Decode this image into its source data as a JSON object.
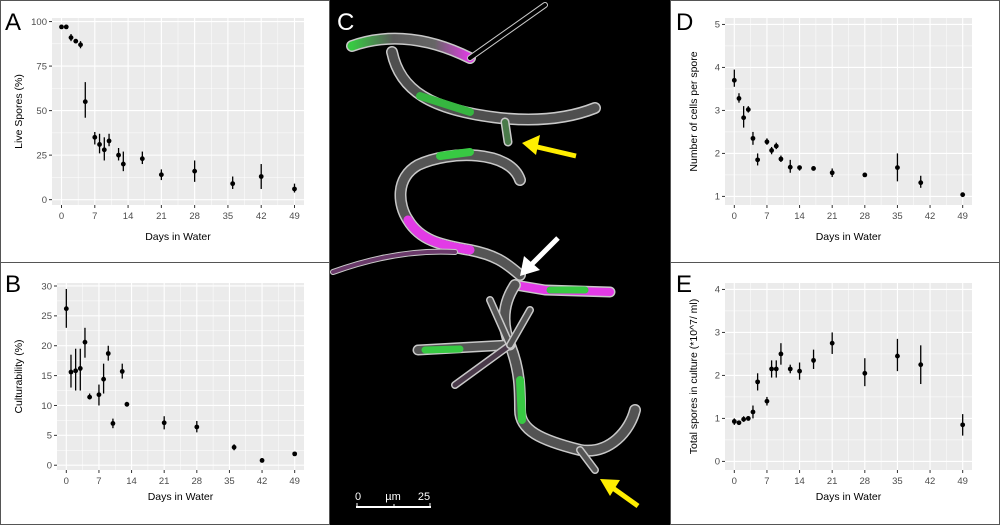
{
  "chart_data": [
    {
      "panel": "A",
      "type": "scatter",
      "xlabel": "Days in Water",
      "ylabel": "Live Spores (%)",
      "xticks": [
        0,
        7,
        14,
        21,
        28,
        35,
        42,
        49
      ],
      "yticks": [
        0,
        25,
        50,
        75,
        100
      ],
      "xlim": [
        -2,
        51
      ],
      "ylim": [
        -3,
        102
      ],
      "grid": true,
      "points": [
        {
          "x": 0,
          "y": 97,
          "lo": 97,
          "hi": 97
        },
        {
          "x": 1,
          "y": 97,
          "lo": 97,
          "hi": 97
        },
        {
          "x": 2,
          "y": 91,
          "lo": 89,
          "hi": 93
        },
        {
          "x": 3,
          "y": 89,
          "lo": 88,
          "hi": 90
        },
        {
          "x": 4,
          "y": 87,
          "lo": 85,
          "hi": 89
        },
        {
          "x": 5,
          "y": 55,
          "lo": 46,
          "hi": 66
        },
        {
          "x": 7,
          "y": 35,
          "lo": 31,
          "hi": 38
        },
        {
          "x": 8,
          "y": 31,
          "lo": 26,
          "hi": 37
        },
        {
          "x": 9,
          "y": 28,
          "lo": 22,
          "hi": 35
        },
        {
          "x": 10,
          "y": 33,
          "lo": 30,
          "hi": 37
        },
        {
          "x": 12,
          "y": 25,
          "lo": 22,
          "hi": 29
        },
        {
          "x": 13,
          "y": 20,
          "lo": 16,
          "hi": 27
        },
        {
          "x": 17,
          "y": 23,
          "lo": 20,
          "hi": 27
        },
        {
          "x": 21,
          "y": 14,
          "lo": 11,
          "hi": 17
        },
        {
          "x": 28,
          "y": 16,
          "lo": 10,
          "hi": 22
        },
        {
          "x": 36,
          "y": 9,
          "lo": 6,
          "hi": 13
        },
        {
          "x": 42,
          "y": 13,
          "lo": 6,
          "hi": 20
        },
        {
          "x": 49,
          "y": 6,
          "lo": 4,
          "hi": 9
        }
      ]
    },
    {
      "panel": "B",
      "type": "scatter",
      "xlabel": "Days in Water",
      "ylabel": "Culturability (%)",
      "xticks": [
        0,
        7,
        14,
        21,
        28,
        35,
        42,
        49
      ],
      "yticks": [
        0,
        5,
        10,
        15,
        20,
        25,
        30
      ],
      "xlim": [
        -2,
        51
      ],
      "ylim": [
        -0.8,
        30.5
      ],
      "grid": true,
      "points": [
        {
          "x": 0,
          "y": 26.2,
          "lo": 23,
          "hi": 29.5
        },
        {
          "x": 1,
          "y": 15.6,
          "lo": 13,
          "hi": 18.5
        },
        {
          "x": 2,
          "y": 15.8,
          "lo": 12.5,
          "hi": 19.5
        },
        {
          "x": 3,
          "y": 16.2,
          "lo": 12.5,
          "hi": 19.5
        },
        {
          "x": 4,
          "y": 20.6,
          "lo": 18,
          "hi": 23
        },
        {
          "x": 5,
          "y": 11.4,
          "lo": 11,
          "hi": 12
        },
        {
          "x": 7,
          "y": 11.8,
          "lo": 10,
          "hi": 13.5
        },
        {
          "x": 8,
          "y": 14.4,
          "lo": 12,
          "hi": 17
        },
        {
          "x": 9,
          "y": 18.7,
          "lo": 17.5,
          "hi": 20
        },
        {
          "x": 10,
          "y": 7.0,
          "lo": 6.2,
          "hi": 7.8
        },
        {
          "x": 12,
          "y": 15.7,
          "lo": 14.5,
          "hi": 17
        },
        {
          "x": 13,
          "y": 10.2,
          "lo": 9.8,
          "hi": 10.6
        },
        {
          "x": 21,
          "y": 7.1,
          "lo": 6,
          "hi": 8.2
        },
        {
          "x": 28,
          "y": 6.4,
          "lo": 5.5,
          "hi": 7.4
        },
        {
          "x": 36,
          "y": 3.0,
          "lo": 2.5,
          "hi": 3.5
        },
        {
          "x": 42,
          "y": 0.8,
          "lo": 0.7,
          "hi": 0.9
        },
        {
          "x": 49,
          "y": 1.9,
          "lo": 1.8,
          "hi": 2.0
        }
      ]
    },
    {
      "panel": "D",
      "type": "scatter",
      "xlabel": "Days in Water",
      "ylabel": "Number of cells per spore",
      "xticks": [
        0,
        7,
        14,
        21,
        28,
        35,
        42,
        49
      ],
      "yticks": [
        1,
        2,
        3,
        4,
        5
      ],
      "xlim": [
        -2,
        51
      ],
      "ylim": [
        0.8,
        5.15
      ],
      "grid": true,
      "points": [
        {
          "x": 0,
          "y": 3.7,
          "lo": 3.55,
          "hi": 3.95
        },
        {
          "x": 1,
          "y": 3.28,
          "lo": 3.18,
          "hi": 3.4
        },
        {
          "x": 2,
          "y": 2.83,
          "lo": 2.6,
          "hi": 3.1
        },
        {
          "x": 3,
          "y": 3.02,
          "lo": 2.95,
          "hi": 3.1
        },
        {
          "x": 4,
          "y": 2.35,
          "lo": 2.2,
          "hi": 2.5
        },
        {
          "x": 5,
          "y": 1.85,
          "lo": 1.72,
          "hi": 2.0
        },
        {
          "x": 7,
          "y": 2.27,
          "lo": 2.2,
          "hi": 2.35
        },
        {
          "x": 8,
          "y": 2.07,
          "lo": 1.98,
          "hi": 2.15
        },
        {
          "x": 9,
          "y": 2.17,
          "lo": 2.1,
          "hi": 2.25
        },
        {
          "x": 10,
          "y": 1.87,
          "lo": 1.8,
          "hi": 1.95
        },
        {
          "x": 12,
          "y": 1.68,
          "lo": 1.55,
          "hi": 1.85
        },
        {
          "x": 14,
          "y": 1.67,
          "lo": 1.6,
          "hi": 1.72
        },
        {
          "x": 17,
          "y": 1.65,
          "lo": 1.62,
          "hi": 1.68
        },
        {
          "x": 21,
          "y": 1.55,
          "lo": 1.45,
          "hi": 1.65
        },
        {
          "x": 28,
          "y": 1.5,
          "lo": 1.47,
          "hi": 1.53
        },
        {
          "x": 35,
          "y": 1.67,
          "lo": 1.35,
          "hi": 2.0
        },
        {
          "x": 40,
          "y": 1.32,
          "lo": 1.2,
          "hi": 1.48
        },
        {
          "x": 49,
          "y": 1.04,
          "lo": 1.02,
          "hi": 1.06
        }
      ]
    },
    {
      "panel": "E",
      "type": "scatter",
      "xlabel": "Days in Water",
      "ylabel": "Total spores in culture (*10^7/ ml)",
      "xticks": [
        0,
        7,
        14,
        21,
        28,
        35,
        42,
        49
      ],
      "yticks": [
        0,
        1,
        2,
        3,
        4
      ],
      "xlim": [
        -2,
        51
      ],
      "ylim": [
        -0.2,
        4.15
      ],
      "grid": true,
      "points": [
        {
          "x": 0,
          "y": 0.93,
          "lo": 0.85,
          "hi": 1.0
        },
        {
          "x": 1,
          "y": 0.9,
          "lo": 0.85,
          "hi": 0.95
        },
        {
          "x": 2,
          "y": 0.98,
          "lo": 0.92,
          "hi": 1.05
        },
        {
          "x": 3,
          "y": 1.0,
          "lo": 0.95,
          "hi": 1.05
        },
        {
          "x": 4,
          "y": 1.15,
          "lo": 1.0,
          "hi": 1.3
        },
        {
          "x": 5,
          "y": 1.85,
          "lo": 1.65,
          "hi": 2.05
        },
        {
          "x": 7,
          "y": 1.4,
          "lo": 1.3,
          "hi": 1.5
        },
        {
          "x": 8,
          "y": 2.15,
          "lo": 1.95,
          "hi": 2.35
        },
        {
          "x": 9,
          "y": 2.15,
          "lo": 1.95,
          "hi": 2.35
        },
        {
          "x": 10,
          "y": 2.5,
          "lo": 2.25,
          "hi": 2.75
        },
        {
          "x": 12,
          "y": 2.15,
          "lo": 2.05,
          "hi": 2.25
        },
        {
          "x": 14,
          "y": 2.1,
          "lo": 1.9,
          "hi": 2.3
        },
        {
          "x": 17,
          "y": 2.35,
          "lo": 2.15,
          "hi": 2.6
        },
        {
          "x": 21,
          "y": 2.75,
          "lo": 2.5,
          "hi": 3.0
        },
        {
          "x": 28,
          "y": 2.05,
          "lo": 1.75,
          "hi": 2.4
        },
        {
          "x": 35,
          "y": 2.45,
          "lo": 2.1,
          "hi": 2.85
        },
        {
          "x": 40,
          "y": 2.25,
          "lo": 1.8,
          "hi": 2.7
        },
        {
          "x": 49,
          "y": 0.85,
          "lo": 0.6,
          "hi": 1.1
        }
      ]
    }
  ],
  "panels": {
    "A": {
      "letter": "A"
    },
    "B": {
      "letter": "B"
    },
    "C": {
      "letter": "C",
      "scalebar_start": "0",
      "scalebar_unit": "µm",
      "scalebar_end": "25"
    },
    "D": {
      "letter": "D"
    },
    "E": {
      "letter": "E"
    }
  },
  "colors": {
    "plot_bg": "#ebebeb",
    "grid": "#ffffff",
    "point": "#000000",
    "micrograph_bg": "#000000",
    "hypha_green": "#3fd24a",
    "hypha_magenta": "#e23be6",
    "hypha_gray": "#5a5a5a",
    "arrow_yellow": "#ffee00",
    "arrow_white": "#ffffff"
  }
}
